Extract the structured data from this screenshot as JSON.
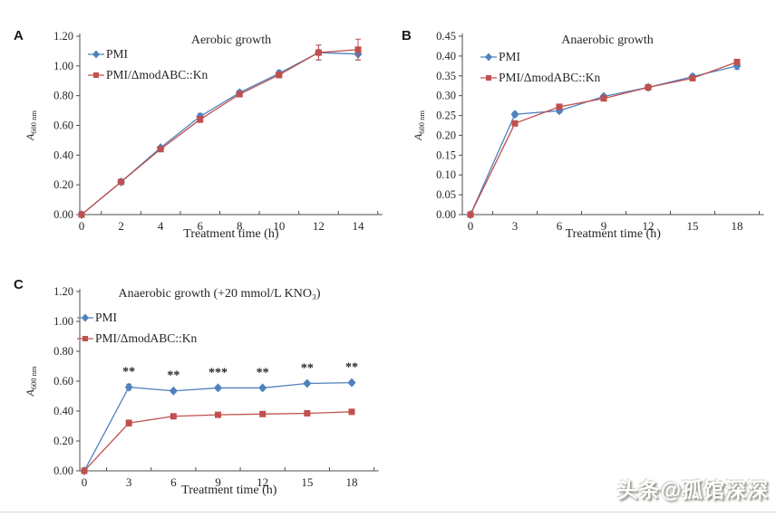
{
  "watermark": {
    "text": "头条@孤馆深深"
  },
  "colors": {
    "pmi_blue": "#4f81bd",
    "mutant_red": "#c0504d",
    "axis": "#4d4d4d",
    "divider": "#ccd9e8"
  },
  "chart_data": [
    {
      "panel_label": "A",
      "type": "line",
      "title": "Aerobic growth",
      "xlabel": "Treatment time (h)",
      "ylabel_base": "A",
      "ylabel_sub": "600 nm",
      "x": [
        0,
        2,
        4,
        6,
        8,
        10,
        12,
        14
      ],
      "ylim": [
        0,
        1.2
      ],
      "yticks": [
        0,
        0.2,
        0.4,
        0.6,
        0.8,
        1.0,
        1.2
      ],
      "grid": false,
      "legend_position": "top-left",
      "series": [
        {
          "name": "PMI",
          "color": "#4f81bd",
          "marker": "diamond",
          "values": [
            0.0,
            0.22,
            0.45,
            0.66,
            0.82,
            0.95,
            1.09,
            1.08
          ],
          "errors": [
            0,
            0,
            0.01,
            0.02,
            0.015,
            0.02,
            0.05,
            0.04
          ]
        },
        {
          "name": "PMI/ΔmodABC::Kn",
          "color": "#c0504d",
          "marker": "square",
          "values": [
            0.0,
            0.22,
            0.44,
            0.64,
            0.81,
            0.94,
            1.09,
            1.11
          ],
          "errors": [
            0,
            0,
            0.015,
            0.02,
            0.015,
            0.02,
            0.05,
            0.07
          ]
        }
      ]
    },
    {
      "panel_label": "B",
      "type": "line",
      "title": "Anaerobic growth",
      "xlabel": "Treatment time (h)",
      "ylabel_base": "A",
      "ylabel_sub": "600 nm",
      "x": [
        0,
        3,
        6,
        9,
        12,
        15,
        18
      ],
      "ylim": [
        0,
        0.45
      ],
      "yticks": [
        0,
        0.05,
        0.1,
        0.15,
        0.2,
        0.25,
        0.3,
        0.35,
        0.4,
        0.45
      ],
      "grid": false,
      "legend_position": "top-left",
      "series": [
        {
          "name": "PMI",
          "color": "#4f81bd",
          "marker": "diamond",
          "values": [
            0.0,
            0.253,
            0.262,
            0.298,
            0.321,
            0.348,
            0.375
          ],
          "errors": [
            0,
            0.005,
            0.005,
            0.005,
            0.004,
            0.006,
            0.008
          ]
        },
        {
          "name": "PMI/ΔmodABC::Kn",
          "color": "#c0504d",
          "marker": "square",
          "values": [
            0.0,
            0.23,
            0.272,
            0.293,
            0.321,
            0.344,
            0.385
          ],
          "errors": [
            0,
            0.005,
            0.005,
            0.005,
            0.004,
            0.006,
            0.006
          ]
        }
      ]
    },
    {
      "panel_label": "C",
      "type": "line",
      "title": "Anaerobic growth (+20 mmol/L KNO₃)",
      "xlabel": "Treatment time (h)",
      "ylabel_base": "A",
      "ylabel_sub": "600 nm",
      "x": [
        0,
        3,
        6,
        9,
        12,
        15,
        18
      ],
      "ylim": [
        0,
        1.2
      ],
      "yticks": [
        0,
        0.2,
        0.4,
        0.6,
        0.8,
        1.0,
        1.2
      ],
      "grid": false,
      "legend_position": "top-left",
      "series": [
        {
          "name": "PMI",
          "color": "#4f81bd",
          "marker": "diamond",
          "values": [
            0.0,
            0.56,
            0.535,
            0.555,
            0.555,
            0.585,
            0.59
          ],
          "errors": [
            0,
            0.02,
            0.01,
            0.01,
            0.01,
            0.01,
            0.01
          ]
        },
        {
          "name": "PMI/ΔmodABC::Kn",
          "color": "#c0504d",
          "marker": "square",
          "values": [
            0.0,
            0.32,
            0.365,
            0.375,
            0.38,
            0.385,
            0.395
          ],
          "errors": [
            0,
            0.02,
            0.01,
            0.01,
            0.01,
            0.01,
            0.01
          ]
        }
      ],
      "annotations": [
        {
          "x": 3,
          "text": "**"
        },
        {
          "x": 6,
          "text": "**"
        },
        {
          "x": 9,
          "text": "***"
        },
        {
          "x": 12,
          "text": "**"
        },
        {
          "x": 15,
          "text": "**"
        },
        {
          "x": 18,
          "text": "**"
        }
      ]
    }
  ]
}
